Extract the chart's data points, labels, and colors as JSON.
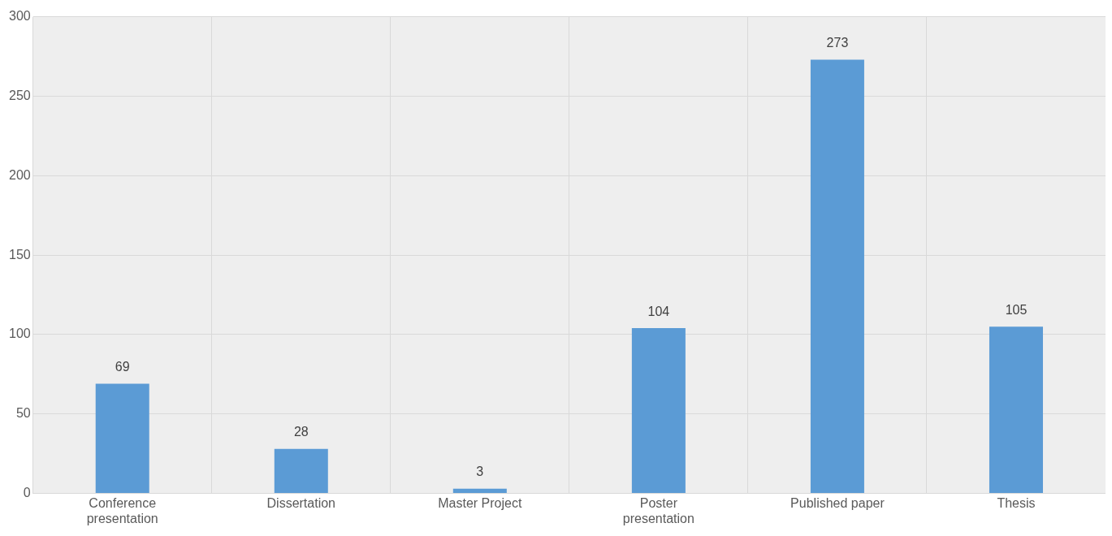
{
  "chart_data": {
    "type": "bar",
    "categories": [
      "Conference presentation",
      "Dissertation",
      "Master Project",
      "Poster presentation",
      "Published paper",
      "Thesis"
    ],
    "values": [
      69,
      28,
      3,
      104,
      273,
      105
    ],
    "color": "#5b9bd5",
    "ylim": [
      0,
      300
    ],
    "yticks": [
      0,
      50,
      100,
      150,
      200,
      250,
      300
    ],
    "grid": true,
    "data_labels": true
  }
}
